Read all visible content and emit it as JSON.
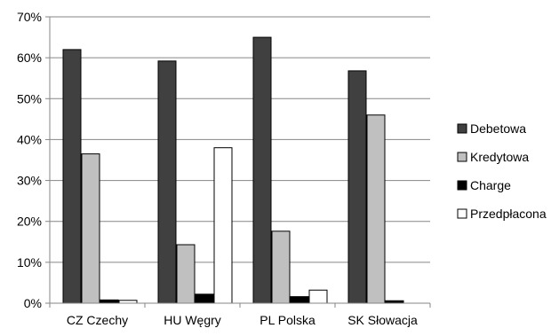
{
  "chart_data": {
    "type": "bar",
    "title": "",
    "xlabel": "",
    "ylabel": "",
    "categories": [
      "CZ Czechy",
      "HU Węgry",
      "PL Polska",
      "SK Słowacja"
    ],
    "series": [
      {
        "name": "Debetowa",
        "values": [
          62,
          59.2,
          65,
          56.8
        ],
        "color": "#404040",
        "stroke": "#000000"
      },
      {
        "name": "Kredytowa",
        "values": [
          36.5,
          14.3,
          17.6,
          46
        ],
        "color": "#c0c0c0",
        "stroke": "#000000"
      },
      {
        "name": "Charge",
        "values": [
          0.8,
          2.2,
          1.6,
          0.6
        ],
        "color": "#000000",
        "stroke": "#000000"
      },
      {
        "name": "Przedpłacona",
        "values": [
          0.7,
          38,
          3.2,
          0
        ],
        "color": "#ffffff",
        "stroke": "#000000"
      }
    ],
    "ylim": [
      0,
      70
    ],
    "y_ticks": [
      0,
      10,
      20,
      30,
      40,
      50,
      60,
      70
    ],
    "y_tick_format": "percent",
    "grid": true,
    "legend_position": "right"
  }
}
